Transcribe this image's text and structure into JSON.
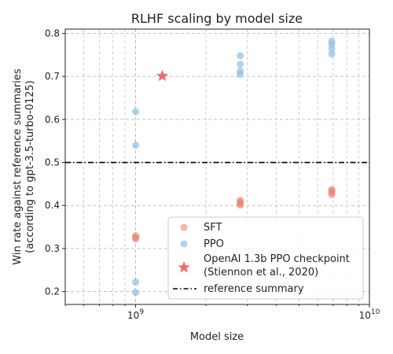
{
  "chart_data": {
    "type": "scatter",
    "title": "RLHF scaling by model size",
    "xlabel": "Model size",
    "ylabel_line1": "Win rate against reference summaries",
    "ylabel_line2": "(according to gpt-3.5-turbo-0125)",
    "x_scale": "log",
    "xlim": [
      500000000,
      10000000000
    ],
    "ylim": [
      0.17,
      0.81
    ],
    "yticks": [
      0.2,
      0.3,
      0.4,
      0.5,
      0.6,
      0.7,
      0.8
    ],
    "ytick_labels": [
      "0.2",
      "0.3",
      "0.4",
      "0.5",
      "0.6",
      "0.7",
      "0.8"
    ],
    "xticks": [
      {
        "value": 1000000000,
        "base": "10",
        "exp": "9"
      },
      {
        "value": 10000000000,
        "base": "10",
        "exp": "10"
      }
    ],
    "grid": true,
    "legend_position": "lower-right",
    "colors": {
      "sft": "#f08070",
      "ppo": "#8fbfe0",
      "openai": "#ef5350",
      "reference": "#000000"
    },
    "series": [
      {
        "name": "SFT",
        "marker": "circle",
        "points": [
          {
            "x": 1000000000,
            "y": 0.322
          },
          {
            "x": 1000000000,
            "y": 0.326
          },
          {
            "x": 1000000000,
            "y": 0.33
          },
          {
            "x": 2800000000,
            "y": 0.401
          },
          {
            "x": 2800000000,
            "y": 0.404
          },
          {
            "x": 2800000000,
            "y": 0.408
          },
          {
            "x": 2800000000,
            "y": 0.412
          },
          {
            "x": 6900000000,
            "y": 0.425
          },
          {
            "x": 6900000000,
            "y": 0.43
          },
          {
            "x": 6900000000,
            "y": 0.434
          },
          {
            "x": 6900000000,
            "y": 0.437
          }
        ]
      },
      {
        "name": "PPO",
        "marker": "circle",
        "points": [
          {
            "x": 1000000000,
            "y": 0.198
          },
          {
            "x": 1000000000,
            "y": 0.222
          },
          {
            "x": 1000000000,
            "y": 0.54
          },
          {
            "x": 1000000000,
            "y": 0.618
          },
          {
            "x": 2800000000,
            "y": 0.705
          },
          {
            "x": 2800000000,
            "y": 0.712
          },
          {
            "x": 2800000000,
            "y": 0.728
          },
          {
            "x": 2800000000,
            "y": 0.748
          },
          {
            "x": 6900000000,
            "y": 0.752
          },
          {
            "x": 6900000000,
            "y": 0.765
          },
          {
            "x": 6900000000,
            "y": 0.775
          },
          {
            "x": 6900000000,
            "y": 0.782
          }
        ]
      },
      {
        "name_line1": "OpenAI 1.3b PPO checkpoint",
        "name_line2": "(Stiennon et al., 2020)",
        "marker": "star",
        "points": [
          {
            "x": 1300000000,
            "y": 0.701
          }
        ]
      }
    ],
    "reference_line": {
      "name": "reference summary",
      "y": 0.5,
      "style": "dashdot"
    }
  }
}
